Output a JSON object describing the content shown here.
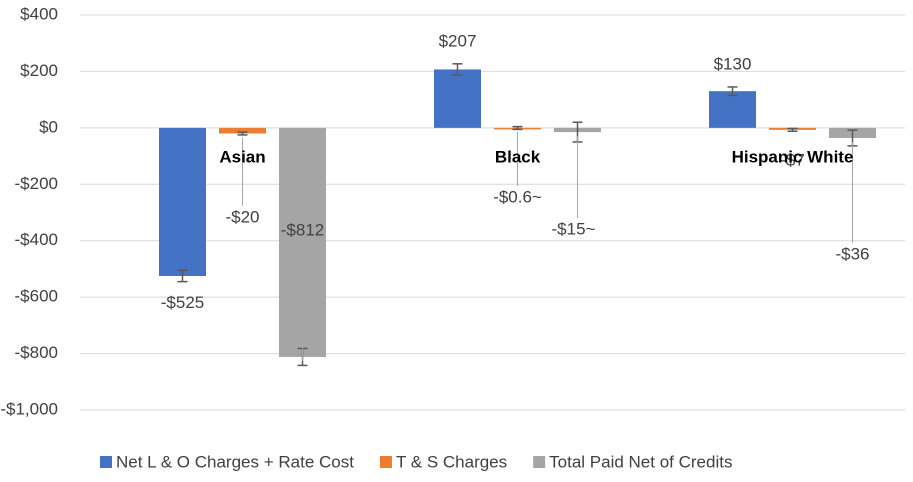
{
  "chart_data": {
    "type": "bar",
    "categories": [
      "Asian",
      "Black",
      "Hispanic White"
    ],
    "series": [
      {
        "name": "Net L & O Charges + Rate Cost",
        "color": "#4472c4",
        "values": [
          -525,
          207,
          130
        ],
        "errors": [
          20,
          20,
          15
        ],
        "value_labels": [
          "-$525",
          "$207",
          "$130"
        ]
      },
      {
        "name": "T & S Charges",
        "color": "#ed7d31",
        "values": [
          -20,
          -0.6,
          -7
        ],
        "errors": [
          5,
          5,
          5
        ],
        "value_labels": [
          "-$20",
          "-$0.6~",
          "-$7"
        ]
      },
      {
        "name": "Total Paid Net of Credits",
        "color": "#a5a5a5",
        "values": [
          -812,
          -15,
          -36
        ],
        "errors": [
          30,
          35,
          28
        ],
        "value_labels": [
          "-$812",
          "-$15~",
          "-$36"
        ]
      }
    ],
    "ylim": [
      -1000,
      400
    ],
    "yticks": [
      {
        "value": 400,
        "label": "$400"
      },
      {
        "value": 200,
        "label": "$200"
      },
      {
        "value": 0,
        "label": "$0"
      },
      {
        "value": -200,
        "label": "-$200"
      },
      {
        "value": -400,
        "label": "-$400"
      },
      {
        "value": -600,
        "label": "-$600"
      },
      {
        "value": -800,
        "label": "-$800"
      },
      {
        "value": -1000,
        "label": "-$1,000"
      }
    ],
    "grid": true,
    "legend": "bottom"
  }
}
